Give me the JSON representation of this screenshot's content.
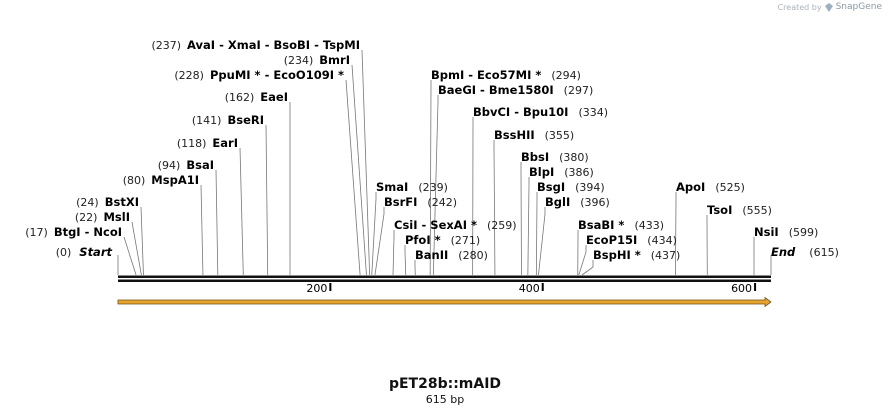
{
  "credit": {
    "prefix": "Created by",
    "brand": "SnapGene"
  },
  "title": "pET28b::mAID",
  "length_label": "615 bp",
  "sequence_length": 615,
  "ticks": [
    200,
    400,
    600
  ],
  "start_label": {
    "pos": "(0)",
    "name": "Start"
  },
  "end_label": {
    "name": "End",
    "pos": "(615)"
  },
  "sites": [
    {
      "pos": 17,
      "pos_text": "(17)",
      "names": [
        "BtgI",
        "NcoI"
      ],
      "side": "left"
    },
    {
      "pos": 22,
      "pos_text": "(22)",
      "names": [
        "MslI"
      ],
      "side": "left"
    },
    {
      "pos": 24,
      "pos_text": "(24)",
      "names": [
        "BstXI"
      ],
      "side": "left"
    },
    {
      "pos": 80,
      "pos_text": "(80)",
      "names": [
        "MspA1I"
      ],
      "side": "left"
    },
    {
      "pos": 94,
      "pos_text": "(94)",
      "names": [
        "BsaI"
      ],
      "side": "left"
    },
    {
      "pos": 118,
      "pos_text": "(118)",
      "names": [
        "EarI"
      ],
      "side": "left"
    },
    {
      "pos": 141,
      "pos_text": "(141)",
      "names": [
        "BseRI"
      ],
      "side": "left"
    },
    {
      "pos": 162,
      "pos_text": "(162)",
      "names": [
        "EaeI"
      ],
      "side": "left"
    },
    {
      "pos": 228,
      "pos_text": "(228)",
      "names": [
        "PpuMI *",
        "EcoO109I *"
      ],
      "side": "left"
    },
    {
      "pos": 234,
      "pos_text": "(234)",
      "names": [
        "BmrI"
      ],
      "side": "left"
    },
    {
      "pos": 237,
      "pos_text": "(237)",
      "names": [
        "AvaI",
        "XmaI",
        "BsoBI",
        "TspMI"
      ],
      "side": "left"
    },
    {
      "pos": 239,
      "pos_text": "(239)",
      "names": [
        "SmaI"
      ],
      "side": "right"
    },
    {
      "pos": 242,
      "pos_text": "(242)",
      "names": [
        "BsrFI"
      ],
      "side": "right"
    },
    {
      "pos": 259,
      "pos_text": "(259)",
      "names": [
        "CsiI",
        "SexAI *"
      ],
      "side": "right"
    },
    {
      "pos": 271,
      "pos_text": "(271)",
      "names": [
        "PfoI *"
      ],
      "side": "right"
    },
    {
      "pos": 280,
      "pos_text": "(280)",
      "names": [
        "BanII"
      ],
      "side": "right"
    },
    {
      "pos": 294,
      "pos_text": "(294)",
      "names": [
        "BpmI",
        "Eco57MI *"
      ],
      "side": "right"
    },
    {
      "pos": 297,
      "pos_text": "(297)",
      "names": [
        "BaeGI",
        "Bme1580I"
      ],
      "side": "right"
    },
    {
      "pos": 334,
      "pos_text": "(334)",
      "names": [
        "BbvCI",
        "Bpu10I"
      ],
      "side": "right"
    },
    {
      "pos": 355,
      "pos_text": "(355)",
      "names": [
        "BssHII"
      ],
      "side": "right"
    },
    {
      "pos": 380,
      "pos_text": "(380)",
      "names": [
        "BbsI"
      ],
      "side": "right"
    },
    {
      "pos": 386,
      "pos_text": "(386)",
      "names": [
        "BlpI"
      ],
      "side": "right"
    },
    {
      "pos": 394,
      "pos_text": "(394)",
      "names": [
        "BsgI"
      ],
      "side": "right"
    },
    {
      "pos": 396,
      "pos_text": "(396)",
      "names": [
        "BglI"
      ],
      "side": "right"
    },
    {
      "pos": 433,
      "pos_text": "(433)",
      "names": [
        "BsaBI *"
      ],
      "side": "right"
    },
    {
      "pos": 434,
      "pos_text": "(434)",
      "names": [
        "EcoP15I"
      ],
      "side": "right"
    },
    {
      "pos": 437,
      "pos_text": "(437)",
      "names": [
        "BspHI *"
      ],
      "side": "right"
    },
    {
      "pos": 525,
      "pos_text": "(525)",
      "names": [
        "ApoI"
      ],
      "side": "right"
    },
    {
      "pos": 555,
      "pos_text": "(555)",
      "names": [
        "TsoI"
      ],
      "side": "right"
    },
    {
      "pos": 599,
      "pos_text": "(599)",
      "names": [
        "NsiI"
      ],
      "side": "right"
    }
  ],
  "feature": {
    "name": "forward-arrow",
    "start": 0,
    "end": 615,
    "color": "#e7a32a",
    "stroke": "#6e5216"
  }
}
